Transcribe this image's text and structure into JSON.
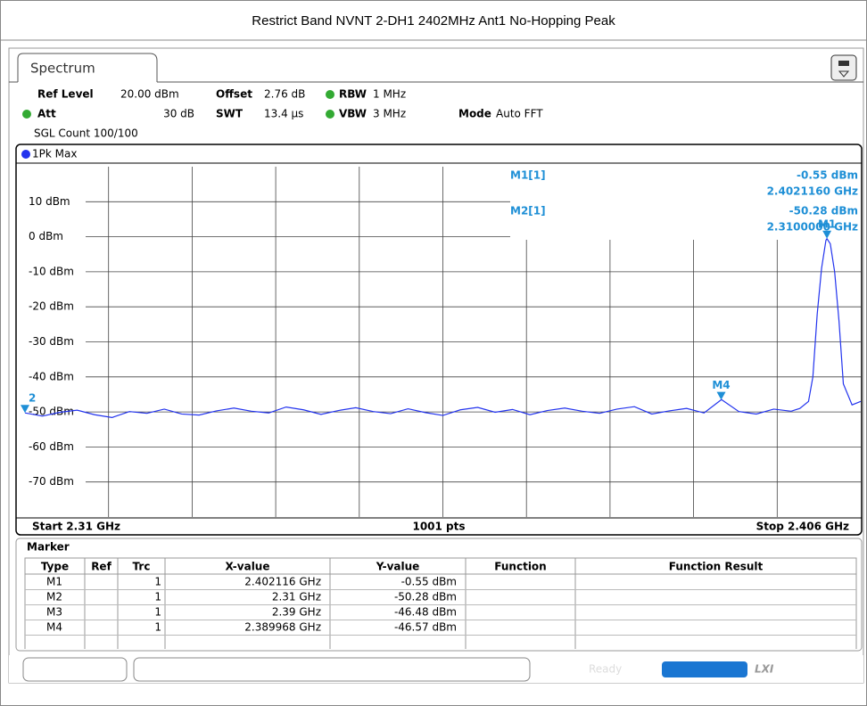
{
  "page_title": "Restrict Band NVNT 2-DH1 2402MHz Ant1 No-Hopping Peak",
  "tab": "Spectrum",
  "settings": {
    "ref_level_label": "Ref Level",
    "ref_level": "20.00 dBm",
    "offset_label": "Offset",
    "offset": "2.76 dB",
    "rbw_label": "RBW",
    "rbw": "1 MHz",
    "att_label": "Att",
    "att": "30 dB",
    "swt_label": "SWT",
    "swt": "13.4 µs",
    "vbw_label": "VBW",
    "vbw": "3 MHz",
    "mode_label": "Mode",
    "mode": "Auto FFT",
    "count": "SGL Count 100/100"
  },
  "chart_data": {
    "type": "line",
    "trace_label": "1Pk Max",
    "color": "#2233ee",
    "marker_color": "#1e8fd6",
    "x": [
      2.31,
      2.312,
      2.314,
      2.316,
      2.318,
      2.32,
      2.322,
      2.324,
      2.326,
      2.328,
      2.33,
      2.332,
      2.334,
      2.336,
      2.338,
      2.34,
      2.342,
      2.344,
      2.346,
      2.348,
      2.35,
      2.352,
      2.354,
      2.356,
      2.358,
      2.36,
      2.362,
      2.364,
      2.366,
      2.368,
      2.37,
      2.372,
      2.374,
      2.376,
      2.378,
      2.38,
      2.382,
      2.384,
      2.386,
      2.388,
      2.39,
      2.392,
      2.394,
      2.396,
      2.398,
      2.399,
      2.4,
      2.4005,
      2.401,
      2.4015,
      2.402,
      2.402116,
      2.4025,
      2.403,
      2.4035,
      2.404,
      2.405,
      2.406
    ],
    "values": [
      -50.28,
      -51.2,
      -50.1,
      -49.5,
      -50.8,
      -51.6,
      -49.9,
      -50.4,
      -49.2,
      -50.6,
      -50.9,
      -49.7,
      -48.9,
      -49.8,
      -50.3,
      -48.6,
      -49.4,
      -50.7,
      -49.6,
      -48.8,
      -49.9,
      -50.5,
      -49.1,
      -50.2,
      -51.0,
      -49.4,
      -48.7,
      -50.1,
      -49.3,
      -50.8,
      -49.6,
      -48.9,
      -49.8,
      -50.4,
      -49.2,
      -48.5,
      -50.6,
      -49.7,
      -49.0,
      -50.3,
      -46.48,
      -49.9,
      -50.6,
      -49.2,
      -49.8,
      -49,
      -47,
      -40,
      -22,
      -9,
      -1,
      -0.55,
      -2,
      -10,
      -24,
      -42,
      -48,
      -47
    ],
    "xlim": [
      2.31,
      2.406
    ],
    "ylim": [
      -80,
      20
    ],
    "xticks": [
      2.3196,
      2.3292,
      2.3388,
      2.3484,
      2.358,
      2.3676,
      2.3772,
      2.3868,
      2.3964
    ],
    "yticks": [
      {
        "value": 10,
        "label": "10 dBm"
      },
      {
        "value": 0,
        "label": "0 dBm"
      },
      {
        "value": -10,
        "label": "-10 dBm"
      },
      {
        "value": -20,
        "label": "-20 dBm"
      },
      {
        "value": -30,
        "label": "-30 dBm"
      },
      {
        "value": -40,
        "label": "-40 dBm"
      },
      {
        "value": -50,
        "label": "-50 dBm"
      },
      {
        "value": -60,
        "label": "-60 dBm"
      },
      {
        "value": -70,
        "label": "-70 dBm"
      }
    ],
    "grid": true,
    "start_label": "Start 2.31 GHz",
    "points_label": "1001 pts",
    "stop_label": "Stop 2.406 GHz",
    "markers": [
      {
        "label": "M1",
        "x": 2.402116,
        "value": -0.55
      },
      {
        "label": "2",
        "x": 2.31,
        "value": -50.28
      },
      {
        "label": "M4",
        "x": 2.389968,
        "value": -46.57
      }
    ],
    "readout": [
      {
        "name": "M1[1]",
        "level": "-0.55 dBm",
        "freq": "2.4021160 GHz"
      },
      {
        "name": "M2[1]",
        "level": "-50.28 dBm",
        "freq": "2.3100000 GHz"
      }
    ]
  },
  "marker_table": {
    "title": "Marker",
    "columns": [
      "Type",
      "Ref",
      "Trc",
      "X-value",
      "Y-value",
      "Function",
      "Function Result"
    ],
    "rows": [
      {
        "type": "M1",
        "trc": "1",
        "x": "2.402116 GHz",
        "y": "-0.55 dBm"
      },
      {
        "type": "M2",
        "trc": "1",
        "x": "2.31 GHz",
        "y": "-50.28 dBm"
      },
      {
        "type": "M3",
        "trc": "1",
        "x": "2.39 GHz",
        "y": "-46.48 dBm"
      },
      {
        "type": "M4",
        "trc": "1",
        "x": "2.389968 GHz",
        "y": "-46.57 dBm"
      }
    ]
  },
  "status": "Ready",
  "logo": "LXI"
}
